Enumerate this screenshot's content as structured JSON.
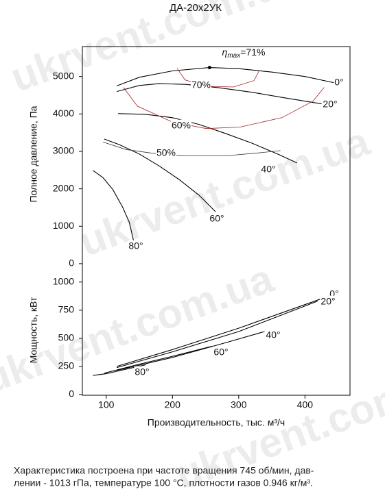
{
  "watermark": "ukrvent.com.ua",
  "caption": [
    "Характеристика построена при частоте вращения 745 об/мин, дав-",
    "лении - 1013 гПа, температуре 100 °С, плотности газов 0.946 кг/м³."
  ],
  "chart_data": [
    {
      "type": "line",
      "title": "ДА-20х2УК",
      "y_label": "Полное давление, Па",
      "xlim": [
        64,
        468
      ],
      "ylim": [
        -130,
        5800
      ],
      "yticks": [
        0,
        1000,
        2000,
        3000,
        4000,
        5000
      ],
      "annotation": {
        "symbol": "η",
        "subscript": "max",
        "text": "=71%",
        "x": 256,
        "y": 5240
      },
      "series": [
        {
          "name": "0°",
          "color": "#000000",
          "x": [
            116,
            150,
            200,
            256,
            300,
            350,
            400,
            445
          ],
          "values": [
            4750,
            4980,
            5150,
            5240,
            5210,
            5120,
            5000,
            4830
          ]
        },
        {
          "name": "20°",
          "color": "#000000",
          "x": [
            116,
            150,
            180,
            220,
            270,
            320,
            370,
            425
          ],
          "values": [
            4600,
            4760,
            4810,
            4790,
            4700,
            4580,
            4430,
            4270
          ]
        },
        {
          "name": "40°",
          "color": "#000000",
          "x": [
            118,
            160,
            200,
            240,
            280,
            320,
            360,
            388
          ],
          "values": [
            4010,
            3990,
            3900,
            3720,
            3480,
            3220,
            2920,
            2690
          ]
        },
        {
          "name": "60°",
          "color": "#000000",
          "x": [
            97,
            120,
            150,
            180,
            210,
            240,
            265
          ],
          "values": [
            3330,
            3180,
            2930,
            2610,
            2250,
            1830,
            1390
          ]
        },
        {
          "name": "80°",
          "color": "#000000",
          "x": [
            80,
            95,
            110,
            125,
            135,
            142
          ],
          "values": [
            2490,
            2300,
            1980,
            1500,
            1100,
            550
          ]
        },
        {
          "name": "50%",
          "color": "#333333",
          "x": [
            95,
            130,
            170,
            220,
            280,
            330,
            363
          ],
          "values": [
            3250,
            3050,
            2950,
            2880,
            2880,
            2960,
            3020
          ]
        },
        {
          "name": "70%",
          "color": "#a02020",
          "x": [
            207,
            219,
            251,
            292,
            323,
            331
          ],
          "values": [
            5220,
            4910,
            4740,
            4720,
            4890,
            5160
          ]
        },
        {
          "name": "60%",
          "color": "#a02020",
          "x": [
            126,
            147,
            199,
            251,
            302,
            365,
            412,
            429
          ],
          "values": [
            4710,
            4210,
            3790,
            3610,
            3650,
            3900,
            4340,
            4710
          ]
        }
      ]
    },
    {
      "type": "line",
      "y_label": "Мощность, кВт",
      "x_label": "Производительность, тыс. м³/ч",
      "xlim": [
        64,
        468
      ],
      "ylim": [
        0,
        1120
      ],
      "xticks": [
        100,
        200,
        300,
        400
      ],
      "yticks": [
        0,
        250,
        500,
        750,
        1000
      ],
      "series": [
        {
          "name": "0°",
          "color": "#000000",
          "x": [
            116,
            200,
            300,
            443
          ],
          "values": [
            250,
            400,
            590,
            890
          ]
        },
        {
          "name": "20°",
          "color": "#000000",
          "x": [
            116,
            200,
            300,
            419
          ],
          "values": [
            240,
            380,
            560,
            830
          ]
        },
        {
          "name": "40°",
          "color": "#000000",
          "x": [
            116,
            200,
            280,
            339
          ],
          "values": [
            215,
            330,
            460,
            560
          ]
        },
        {
          "name": "60°",
          "color": "#000000",
          "x": [
            97,
            150,
            200,
            260
          ],
          "values": [
            190,
            270,
            340,
            430
          ]
        },
        {
          "name": "80°",
          "color": "#000000",
          "x": [
            80,
            100,
            130,
            160
          ],
          "values": [
            170,
            185,
            225,
            265
          ]
        }
      ]
    }
  ]
}
